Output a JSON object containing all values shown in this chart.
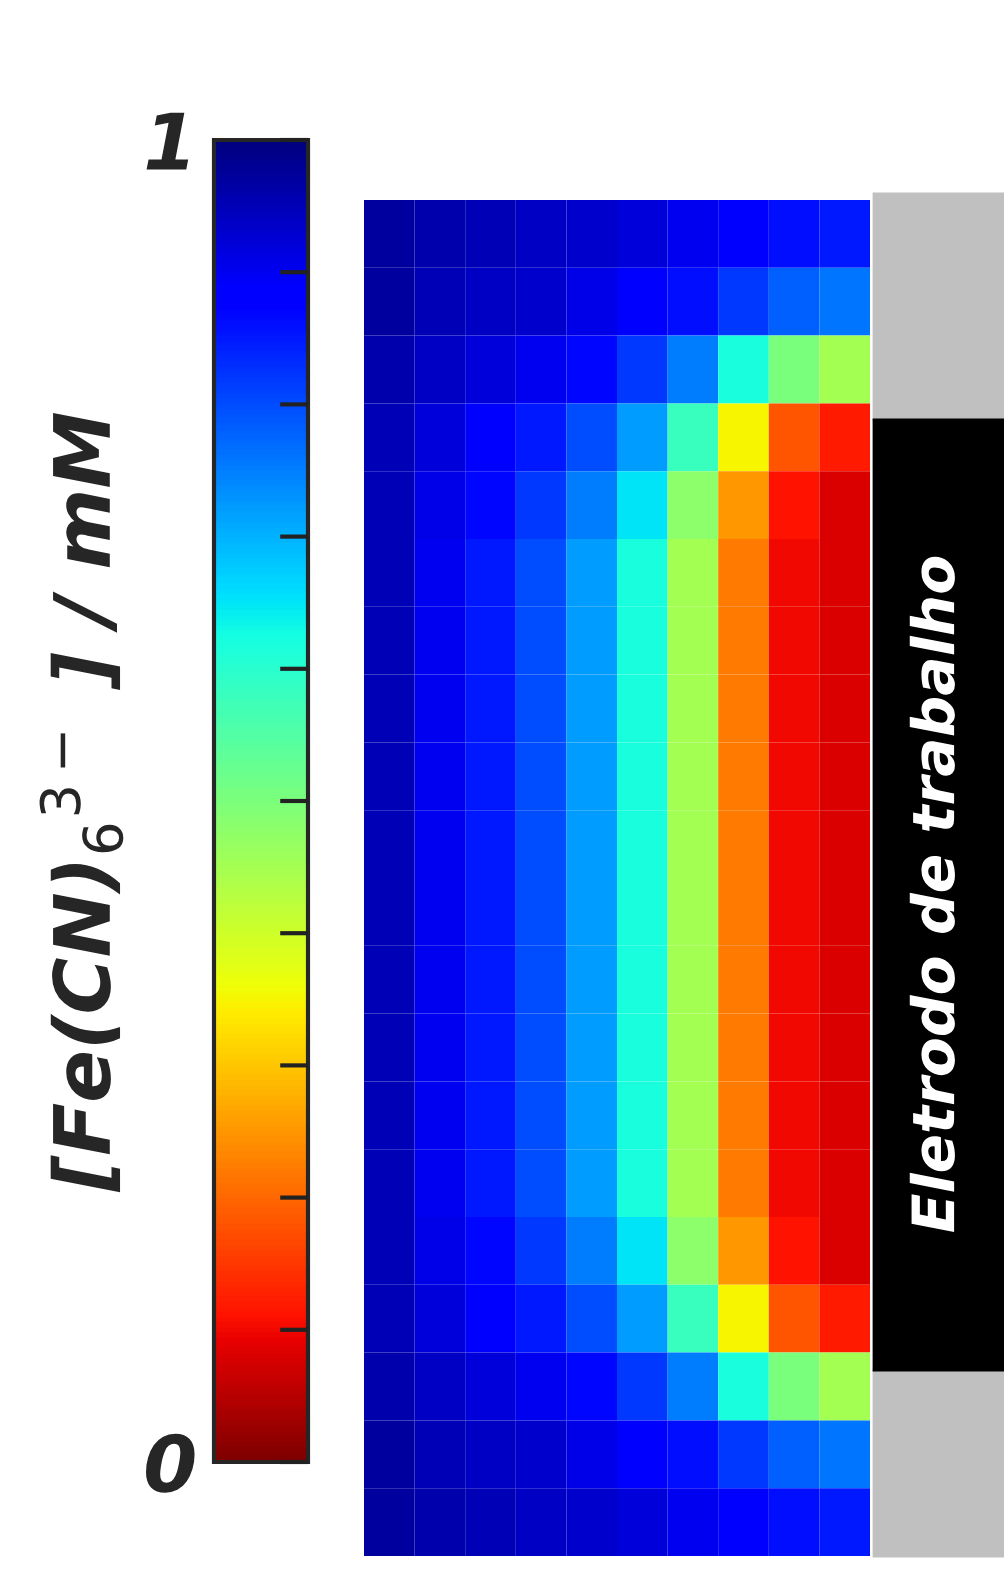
{
  "chart_data": {
    "type": "heatmap",
    "clabel": "[Fe(CN)$_{6}$$^{3−}$ ] / mM",
    "annotations": [
      "Eletrodo de trabalho"
    ],
    "categories": [
      null,
      null,
      null,
      null,
      null,
      null,
      null,
      null,
      null,
      null
    ],
    "y_categories": [
      null,
      null,
      null,
      null,
      null,
      null,
      null,
      null,
      null,
      null,
      null,
      null,
      null,
      null,
      null,
      null,
      null,
      null,
      null,
      null
    ],
    "cells": [
      [
        0.97,
        0.96,
        0.95,
        0.94,
        0.93,
        0.92,
        0.9,
        0.88,
        0.86,
        0.85
      ],
      [
        0.97,
        0.95,
        0.94,
        0.93,
        0.91,
        0.89,
        0.86,
        0.82,
        0.78,
        0.76
      ],
      [
        0.96,
        0.94,
        0.92,
        0.9,
        0.87,
        0.82,
        0.75,
        0.62,
        0.5,
        0.45
      ],
      [
        0.95,
        0.92,
        0.89,
        0.85,
        0.8,
        0.72,
        0.58,
        0.35,
        0.18,
        0.12
      ],
      [
        0.95,
        0.91,
        0.87,
        0.82,
        0.75,
        0.65,
        0.48,
        0.25,
        0.11,
        0.08
      ],
      [
        0.95,
        0.9,
        0.85,
        0.8,
        0.72,
        0.62,
        0.45,
        0.22,
        0.1,
        0.08
      ],
      [
        0.95,
        0.9,
        0.85,
        0.8,
        0.72,
        0.62,
        0.45,
        0.22,
        0.1,
        0.08
      ],
      [
        0.95,
        0.9,
        0.85,
        0.8,
        0.72,
        0.62,
        0.45,
        0.22,
        0.1,
        0.08
      ],
      [
        0.95,
        0.9,
        0.85,
        0.8,
        0.72,
        0.62,
        0.45,
        0.22,
        0.1,
        0.08
      ],
      [
        0.95,
        0.9,
        0.85,
        0.8,
        0.72,
        0.62,
        0.45,
        0.22,
        0.1,
        0.08
      ],
      [
        0.95,
        0.9,
        0.85,
        0.8,
        0.72,
        0.62,
        0.45,
        0.22,
        0.1,
        0.08
      ],
      [
        0.95,
        0.9,
        0.85,
        0.8,
        0.72,
        0.62,
        0.45,
        0.22,
        0.1,
        0.08
      ],
      [
        0.95,
        0.9,
        0.85,
        0.8,
        0.72,
        0.62,
        0.45,
        0.22,
        0.1,
        0.08
      ],
      [
        0.95,
        0.9,
        0.85,
        0.8,
        0.72,
        0.62,
        0.45,
        0.22,
        0.1,
        0.08
      ],
      [
        0.95,
        0.9,
        0.85,
        0.8,
        0.72,
        0.62,
        0.45,
        0.22,
        0.1,
        0.08
      ],
      [
        0.95,
        0.91,
        0.87,
        0.82,
        0.75,
        0.65,
        0.48,
        0.25,
        0.11,
        0.08
      ],
      [
        0.95,
        0.92,
        0.89,
        0.85,
        0.8,
        0.72,
        0.58,
        0.35,
        0.18,
        0.12
      ],
      [
        0.96,
        0.94,
        0.92,
        0.9,
        0.87,
        0.82,
        0.75,
        0.62,
        0.5,
        0.45
      ],
      [
        0.97,
        0.95,
        0.94,
        0.93,
        0.91,
        0.89,
        0.86,
        0.82,
        0.78,
        0.76
      ],
      [
        0.97,
        0.96,
        0.95,
        0.94,
        0.93,
        0.92,
        0.9,
        0.88,
        0.86,
        0.85
      ]
    ],
    "clim": [
      0,
      1
    ],
    "cticks": [
      0,
      {
        "value": 0.1,
        "label": null
      },
      {
        "value": 0.2,
        "label": null
      },
      {
        "value": 0.3,
        "label": null
      },
      {
        "value": 0.4,
        "label": null
      },
      {
        "value": 0.5,
        "label": null
      },
      {
        "value": 0.6,
        "label": null
      },
      {
        "value": 0.7,
        "label": null
      },
      {
        "value": 0.8,
        "label": null
      },
      {
        "value": 0.9,
        "label": null
      },
      1
    ]
  }
}
